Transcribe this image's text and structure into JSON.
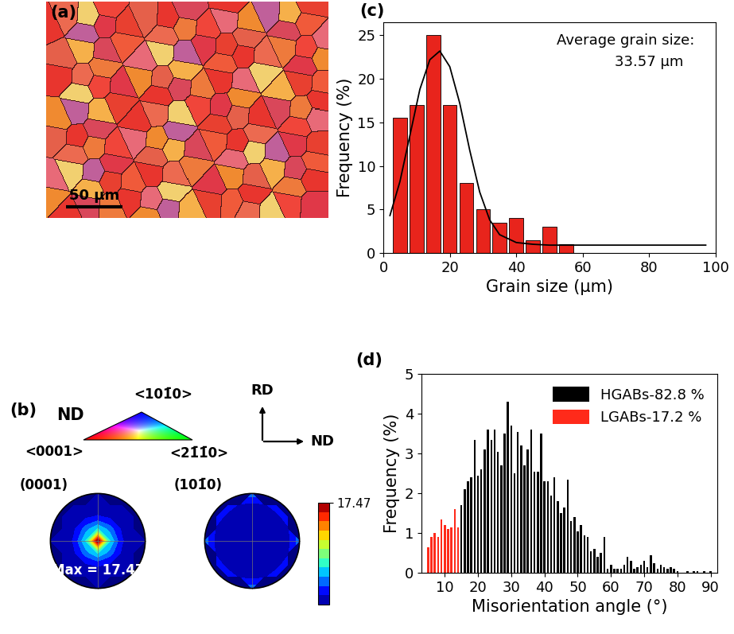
{
  "map": {
    "type": "image",
    "title": "(a)",
    "xlim": [
      0,
      250
    ],
    "ylim": [
      0,
      194
    ],
    "scale_bar": {
      "length": 50,
      "label": "50 μm"
    }
  },
  "ipf_key": {
    "title": "ND",
    "labels": [
      "<0001>",
      "<21̄1̄0>",
      "<101̄0>"
    ]
  },
  "axes_key": {
    "labels": [
      "RD",
      "ND"
    ]
  },
  "pole_figures": {
    "type": "contour",
    "title": "(b)",
    "grid_coords": [
      -1,
      -0.75,
      -0.5,
      -0.25,
      0,
      0.25,
      0.5,
      0.75,
      1
    ],
    "colorbar": {
      "range": [
        0,
        17.47
      ],
      "ticks": [
        17.47
      ]
    },
    "panels": [
      {
        "title": "(0001)",
        "annotation": "Max = 17.47",
        "values": [
          [
            null,
            null,
            null,
            null,
            0.1,
            null,
            null,
            null,
            null
          ],
          [
            null,
            null,
            0.2,
            0.4,
            0.5,
            0.4,
            0.2,
            null,
            null
          ],
          [
            null,
            0.2,
            0.6,
            1.4,
            1.8,
            1.4,
            0.6,
            0.2,
            null
          ],
          [
            null,
            0.4,
            1.4,
            4.0,
            6.5,
            4.0,
            1.4,
            0.4,
            null
          ],
          [
            0.1,
            0.5,
            1.8,
            6.5,
            17.47,
            6.5,
            1.8,
            0.5,
            0.1
          ],
          [
            null,
            0.4,
            1.4,
            4.0,
            6.5,
            4.0,
            1.4,
            0.4,
            null
          ],
          [
            null,
            0.2,
            0.6,
            1.4,
            1.8,
            1.4,
            0.6,
            0.2,
            null
          ],
          [
            null,
            null,
            0.2,
            0.4,
            0.5,
            0.4,
            0.2,
            null,
            null
          ],
          [
            null,
            null,
            null,
            null,
            0.1,
            null,
            null,
            null,
            null
          ]
        ]
      },
      {
        "title": "(101̄0)",
        "values": [
          [
            null,
            null,
            null,
            null,
            4.0,
            null,
            null,
            null,
            null
          ],
          [
            null,
            null,
            2.5,
            1.2,
            1.0,
            1.2,
            2.5,
            null,
            null
          ],
          [
            null,
            2.5,
            0.8,
            0.4,
            0.3,
            0.4,
            0.8,
            2.5,
            null
          ],
          [
            null,
            1.2,
            0.4,
            0.2,
            0.2,
            0.2,
            0.4,
            1.2,
            null
          ],
          [
            4.0,
            1.0,
            0.3,
            0.2,
            0.2,
            0.2,
            0.3,
            1.0,
            4.0
          ],
          [
            null,
            1.2,
            0.4,
            0.2,
            0.2,
            0.2,
            0.4,
            1.2,
            null
          ],
          [
            null,
            2.5,
            0.8,
            0.4,
            0.3,
            0.4,
            0.8,
            2.5,
            null
          ],
          [
            null,
            null,
            2.5,
            1.2,
            1.0,
            1.2,
            2.5,
            null,
            null
          ],
          [
            null,
            null,
            null,
            null,
            4.0,
            null,
            null,
            null,
            null
          ]
        ]
      }
    ]
  },
  "chart_data": [
    {
      "type": "histogram",
      "title": "(c)",
      "x_label": "Grain size (μm)",
      "y_label": "Frequency (%)",
      "bins": [
        2.5,
        7.5,
        12.5,
        17.5,
        22.5,
        27.5,
        32.5,
        37.5,
        42.5,
        47.5,
        52.5,
        57.5
      ],
      "values": [
        15.5,
        17,
        25,
        17,
        8,
        5,
        3.5,
        4,
        1.5,
        3,
        1
      ],
      "color": "#e8241c",
      "xlim": [
        0,
        100
      ],
      "xticks": [
        0,
        20,
        40,
        60,
        80,
        100
      ],
      "ylim": [
        0,
        26.5
      ],
      "yticks": [
        0,
        5,
        10,
        15,
        20,
        25
      ],
      "annotations": [
        "Average grain size:",
        "33.57 μm"
      ],
      "fit": {
        "type": "line",
        "color": "#000000",
        "x": [
          2,
          5,
          8,
          11,
          14,
          17,
          20,
          23,
          26,
          29,
          32,
          35,
          40,
          45,
          50,
          60,
          80,
          97
        ],
        "values": [
          4.3,
          8.2,
          13.5,
          18.8,
          22.2,
          23.2,
          21.4,
          17.2,
          11.8,
          7.0,
          3.8,
          2.1,
          1.2,
          1.0,
          0.9,
          0.9,
          0.9,
          0.9
        ]
      }
    },
    {
      "type": "bar",
      "title": "(d)",
      "x_label": "Misorientation angle (°)",
      "y_label": "Frequency (%)",
      "xlim": [
        3,
        92
      ],
      "xticks": [
        10,
        20,
        30,
        40,
        50,
        60,
        70,
        80,
        90
      ],
      "ylim": [
        0,
        5
      ],
      "yticks": [
        0,
        1,
        2,
        3,
        4,
        5
      ],
      "legend": "upper right",
      "series": [
        {
          "name": "HGABs-82.8 %",
          "color": "#000000",
          "x": [
            15,
            16,
            17,
            18,
            19,
            20,
            21,
            22,
            23,
            24,
            25,
            26,
            27,
            28,
            29,
            30,
            31,
            32,
            33,
            34,
            35,
            36,
            37,
            38,
            39,
            40,
            41,
            42,
            43,
            44,
            45,
            46,
            47,
            48,
            49,
            50,
            51,
            52,
            53,
            54,
            55,
            56,
            57,
            58,
            59,
            60,
            61,
            62,
            63,
            64,
            65,
            66,
            67,
            68,
            69,
            70,
            71,
            72,
            73,
            74,
            75,
            76,
            77,
            78,
            79,
            80,
            81,
            82,
            83,
            84,
            85,
            86,
            87,
            88,
            89,
            90
          ],
          "values": [
            1.7,
            2.1,
            2.3,
            2.4,
            3.35,
            2.45,
            2.6,
            3.1,
            3.6,
            3.35,
            3.6,
            3.05,
            2.7,
            3.5,
            4.3,
            3.7,
            2.5,
            3.55,
            3.2,
            2.7,
            3.1,
            3.6,
            2.55,
            2.55,
            3.5,
            2.3,
            2.3,
            1.95,
            2.4,
            1.8,
            1.5,
            1.65,
            2.35,
            1.3,
            1.4,
            1.05,
            1.2,
            0.95,
            0.9,
            0.55,
            0.6,
            0.4,
            0.5,
            0.9,
            0.1,
            0.2,
            0.1,
            0.1,
            0.1,
            0.2,
            0.4,
            0.3,
            0.1,
            0.15,
            0.2,
            0.3,
            0.15,
            0.45,
            0.25,
            0.1,
            0.2,
            0.15,
            0.1,
            0.15,
            0.1,
            0.05,
            0,
            0,
            0.05,
            0,
            0.05,
            0.05,
            0,
            0.05,
            0,
            0.05
          ]
        },
        {
          "name": "LGABs-17.2 %",
          "color": "#ff2a1a",
          "x": [
            5,
            6,
            7,
            8,
            9,
            10,
            11,
            12,
            13,
            14
          ],
          "values": [
            0.65,
            0.9,
            1.0,
            0.9,
            1.35,
            1.2,
            1.1,
            1.15,
            1.6,
            1.15
          ]
        }
      ]
    }
  ]
}
